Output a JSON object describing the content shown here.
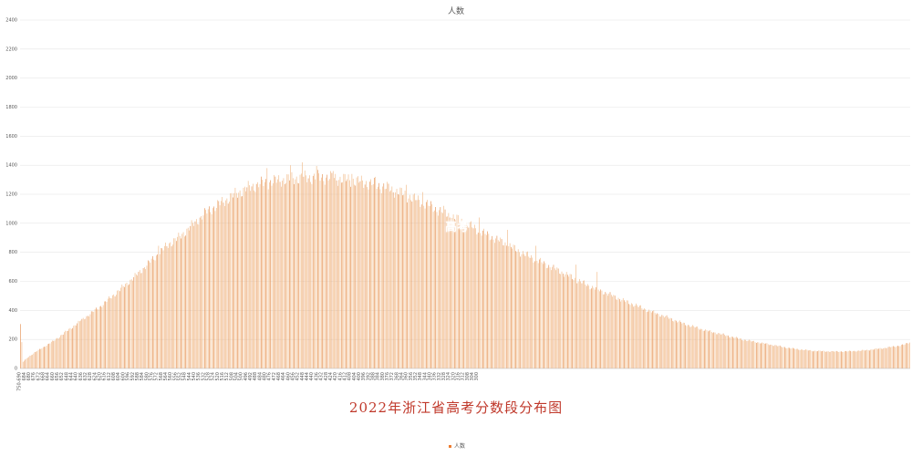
{
  "caption": "2022年浙江省高考分数段分布图",
  "watermark": "高考",
  "chart_data": {
    "type": "bar",
    "title": "人数",
    "legend": [
      {
        "name": "人数",
        "color": "#ed7d31"
      }
    ],
    "legend_position": "bottom",
    "grid": true,
    "xlabel": "",
    "ylabel": "",
    "ylim": [
      0,
      2400
    ],
    "yticks": [
      0,
      200,
      400,
      600,
      800,
      1000,
      1200,
      1400,
      1600,
      1800,
      2000,
      2200,
      2400
    ],
    "xtick_labels": [
      "750-690",
      "684",
      "680",
      "676",
      "672",
      "668",
      "664",
      "660",
      "656",
      "652",
      "648",
      "644",
      "640",
      "636",
      "632",
      "628",
      "624",
      "620",
      "616",
      "612",
      "608",
      "604",
      "600",
      "596",
      "592",
      "588",
      "584",
      "580",
      "576",
      "572",
      "568",
      "564",
      "560",
      "556",
      "552",
      "548",
      "544",
      "540",
      "536",
      "532",
      "528",
      "524",
      "520",
      "516",
      "512",
      "508",
      "504",
      "500",
      "496",
      "492",
      "488",
      "484",
      "480",
      "476",
      "472",
      "468",
      "464",
      "460",
      "456",
      "452",
      "448",
      "444",
      "440",
      "436",
      "432",
      "428",
      "424",
      "420",
      "416",
      "412",
      "408",
      "404",
      "400",
      "396",
      "392",
      "388",
      "384",
      "380",
      "376",
      "372",
      "368",
      "364",
      "360",
      "356",
      "352",
      "348",
      "344",
      "340",
      "336",
      "332",
      "328",
      "324",
      "320",
      "316",
      "312",
      "308",
      "304",
      "300"
    ],
    "bars_per_tick": 4,
    "anchors": [
      [
        0,
        306
      ],
      [
        2,
        45
      ],
      [
        6,
        75
      ],
      [
        12,
        110
      ],
      [
        20,
        150
      ],
      [
        28,
        190
      ],
      [
        38,
        250
      ],
      [
        48,
        310
      ],
      [
        58,
        370
      ],
      [
        68,
        430
      ],
      [
        78,
        500
      ],
      [
        88,
        570
      ],
      [
        98,
        640
      ],
      [
        108,
        720
      ],
      [
        118,
        800
      ],
      [
        126,
        860
      ],
      [
        134,
        900
      ],
      [
        142,
        960
      ],
      [
        150,
        1020
      ],
      [
        158,
        1080
      ],
      [
        166,
        1120
      ],
      [
        174,
        1160
      ],
      [
        182,
        1200
      ],
      [
        192,
        1240
      ],
      [
        202,
        1270
      ],
      [
        212,
        1285
      ],
      [
        222,
        1300
      ],
      [
        232,
        1310
      ],
      [
        242,
        1315
      ],
      [
        252,
        1318
      ],
      [
        262,
        1315
      ],
      [
        272,
        1305
      ],
      [
        282,
        1295
      ],
      [
        292,
        1280
      ],
      [
        302,
        1265
      ],
      [
        312,
        1240
      ],
      [
        322,
        1210
      ],
      [
        332,
        1175
      ],
      [
        342,
        1140
      ],
      [
        352,
        1100
      ],
      [
        362,
        1060
      ],
      [
        372,
        1020
      ],
      [
        382,
        980
      ],
      [
        392,
        935
      ],
      [
        402,
        895
      ],
      [
        412,
        855
      ],
      [
        422,
        810
      ],
      [
        432,
        770
      ],
      [
        442,
        730
      ],
      [
        452,
        690
      ],
      [
        462,
        650
      ],
      [
        472,
        610
      ],
      [
        482,
        570
      ],
      [
        492,
        535
      ],
      [
        502,
        500
      ],
      [
        512,
        465
      ],
      [
        522,
        435
      ],
      [
        532,
        400
      ],
      [
        542,
        370
      ],
      [
        552,
        340
      ],
      [
        562,
        310
      ],
      [
        572,
        285
      ],
      [
        582,
        260
      ],
      [
        592,
        240
      ],
      [
        602,
        220
      ],
      [
        612,
        200
      ],
      [
        622,
        185
      ],
      [
        632,
        170
      ],
      [
        642,
        155
      ],
      [
        652,
        140
      ],
      [
        662,
        130
      ],
      [
        672,
        122
      ],
      [
        682,
        118
      ],
      [
        692,
        116
      ],
      [
        702,
        118
      ],
      [
        712,
        122
      ],
      [
        722,
        130
      ],
      [
        732,
        140
      ],
      [
        742,
        152
      ],
      [
        750,
        165
      ],
      [
        754,
        180
      ]
    ],
    "peaks": [
      [
        209,
        1380
      ],
      [
        229,
        1400
      ],
      [
        239,
        1420
      ],
      [
        251,
        1395
      ],
      [
        265,
        1360
      ],
      [
        281,
        1340
      ],
      [
        301,
        1320
      ],
      [
        327,
        1265
      ],
      [
        341,
        1215
      ],
      [
        359,
        1120
      ],
      [
        389,
        1040
      ],
      [
        413,
        955
      ],
      [
        437,
        845
      ],
      [
        471,
        715
      ],
      [
        489,
        665
      ],
      [
        51,
        330
      ],
      [
        37,
        250
      ],
      [
        117,
        845
      ]
    ]
  }
}
